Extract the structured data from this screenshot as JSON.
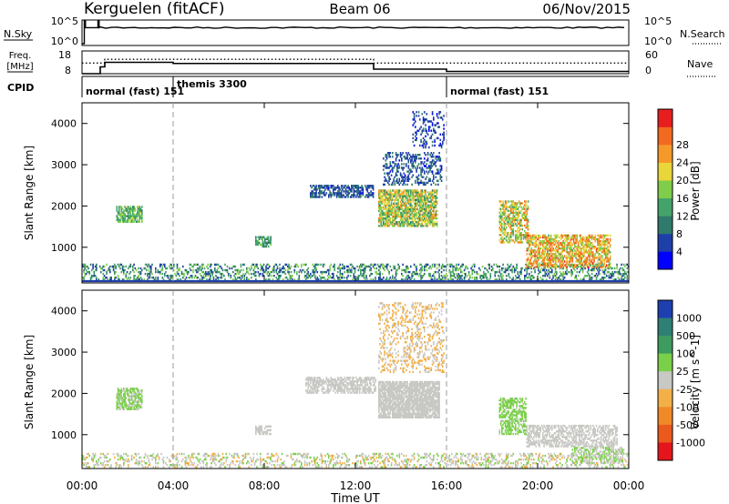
{
  "header": {
    "station": "Kerguelen (fitACF)",
    "beam": "Beam 06",
    "date": "06/Nov/2015"
  },
  "nsky_panel": {
    "left_label": "N.Sky",
    "left_ticks": [
      "10^5",
      "10^0"
    ],
    "right_ticks": [
      "10^5",
      "10^0"
    ],
    "right_label": "N.Search"
  },
  "freq_panel": {
    "left_label_line1": "Freq.",
    "left_label_line2": "[MHz]",
    "left_ticks": [
      "18",
      "8"
    ],
    "right_ticks": [
      "60",
      "0"
    ],
    "right_label": "Nave"
  },
  "cpid_panel": {
    "label": "CPID",
    "segments": [
      {
        "name": "normal (fast) 151",
        "start_hour": 0,
        "end_hour": 4
      },
      {
        "name": "themis 3300",
        "start_hour": 4,
        "end_hour": 16
      },
      {
        "name": "normal (fast) 151",
        "start_hour": 16,
        "end_hour": 24
      }
    ]
  },
  "time_axis": {
    "ticks": [
      "00:00",
      "04:00",
      "08:00",
      "12:00",
      "16:00",
      "20:00",
      "00:00"
    ],
    "label": "Time UT"
  },
  "power_panel": {
    "ylabel": "Slant Range [km]",
    "yticks": [
      "1000",
      "2000",
      "3000",
      "4000"
    ],
    "colorbar_label": "Power [dB]",
    "colorbar_ticks": [
      "4",
      "8",
      "12",
      "16",
      "20",
      "24",
      "28"
    ],
    "colors": [
      "#0000ff",
      "#1f3fa8",
      "#2f7a6a",
      "#44a36a",
      "#7fcd4a",
      "#e8d63a",
      "#f59a2a",
      "#f26a20",
      "#e81e1e"
    ]
  },
  "velocity_panel": {
    "ylabel": "Slant Range [km]",
    "yticks": [
      "1000",
      "2000",
      "3000",
      "4000"
    ],
    "colorbar_label": "Velocity [m s^-1]",
    "colorbar_ticks": [
      "1000",
      "500",
      "100",
      "25",
      "-25",
      "-100",
      "-500",
      "-1000"
    ],
    "colors": [
      "#1d3fb0",
      "#2e7f74",
      "#3e9b5f",
      "#7bd04a",
      "#c8c8c4",
      "#f3b048",
      "#f08a28",
      "#ea5a1d",
      "#e4161b"
    ]
  },
  "chart_data": {
    "type": "heatmap",
    "title": "Kerguelen (fitACF)",
    "xlabel": "Time UT",
    "ylabel": "Slant Range [km]",
    "xlim_hours": [
      0,
      24
    ],
    "ylim_km": [
      180,
      4500
    ],
    "panels": [
      {
        "name": "Power [dB]",
        "range": [
          0,
          30
        ],
        "regions": [
          {
            "t0": 0.0,
            "t1": 24.0,
            "r0": 200,
            "r1": 600,
            "density": 0.35,
            "value": 10,
            "spread": 6
          },
          {
            "t0": 1.5,
            "t1": 2.6,
            "r0": 1600,
            "r1": 2000,
            "density": 0.7,
            "value": 13,
            "spread": 4
          },
          {
            "t0": 7.6,
            "t1": 8.3,
            "r0": 1000,
            "r1": 1250,
            "density": 0.7,
            "value": 12,
            "spread": 4
          },
          {
            "t0": 10.0,
            "t1": 12.8,
            "r0": 2200,
            "r1": 2500,
            "density": 0.6,
            "value": 6,
            "spread": 3
          },
          {
            "t0": 13.0,
            "t1": 15.6,
            "r0": 1500,
            "r1": 2400,
            "density": 0.75,
            "value": 16,
            "spread": 7
          },
          {
            "t0": 13.2,
            "t1": 15.8,
            "r0": 2500,
            "r1": 3300,
            "density": 0.35,
            "value": 6,
            "spread": 3
          },
          {
            "t0": 14.5,
            "t1": 15.9,
            "r0": 3400,
            "r1": 4300,
            "density": 0.25,
            "value": 5,
            "spread": 3
          },
          {
            "t0": 18.3,
            "t1": 19.6,
            "r0": 1100,
            "r1": 2100,
            "density": 0.55,
            "value": 18,
            "spread": 7
          },
          {
            "t0": 19.5,
            "t1": 23.2,
            "r0": 500,
            "r1": 1300,
            "density": 0.6,
            "value": 20,
            "spread": 7
          }
        ]
      },
      {
        "name": "Velocity [m s^-1]",
        "range": [
          -1000,
          1000
        ],
        "regions": [
          {
            "t0": 0.0,
            "t1": 24.0,
            "r0": 200,
            "r1": 550,
            "density": 0.3,
            "value": 0,
            "spread": 200
          },
          {
            "t0": 1.5,
            "t1": 2.6,
            "r0": 1600,
            "r1": 2100,
            "density": 0.7,
            "value": 150,
            "spread": 100
          },
          {
            "t0": 7.6,
            "t1": 8.3,
            "r0": 1000,
            "r1": 1200,
            "density": 0.6,
            "value": 10,
            "spread": 20
          },
          {
            "t0": 9.8,
            "t1": 12.9,
            "r0": 2000,
            "r1": 2400,
            "density": 0.65,
            "value": 0,
            "spread": 20
          },
          {
            "t0": 13.0,
            "t1": 15.7,
            "r0": 1400,
            "r1": 2300,
            "density": 0.85,
            "value": 0,
            "spread": 15
          },
          {
            "t0": 13.0,
            "t1": 15.9,
            "r0": 2500,
            "r1": 4200,
            "density": 0.25,
            "value": -150,
            "spread": 150
          },
          {
            "t0": 18.3,
            "t1": 19.5,
            "r0": 1000,
            "r1": 1900,
            "density": 0.55,
            "value": 200,
            "spread": 120
          },
          {
            "t0": 19.5,
            "t1": 23.5,
            "r0": 700,
            "r1": 1200,
            "density": 0.55,
            "value": 0,
            "spread": 100
          },
          {
            "t0": 21.5,
            "t1": 23.8,
            "r0": 300,
            "r1": 700,
            "density": 0.45,
            "value": 100,
            "spread": 100
          }
        ]
      }
    ],
    "nsky": {
      "level": 0.7
    },
    "freq_mhz": [
      {
        "t0": 0.0,
        "t1": 0.8,
        "value": 8
      },
      {
        "t0": 0.8,
        "t1": 1.0,
        "value": 11
      },
      {
        "t0": 1.0,
        "t1": 4.0,
        "value": 13
      },
      {
        "t0": 4.0,
        "t1": 12.8,
        "value": 12.5
      },
      {
        "t0": 12.8,
        "t1": 16.0,
        "value": 10
      },
      {
        "t0": 16.0,
        "t1": 24.0,
        "value": 9
      }
    ],
    "nave": [
      {
        "t0": 0.0,
        "t1": 1.0,
        "value": 28
      },
      {
        "t0": 1.0,
        "t1": 4.0,
        "value": 38
      },
      {
        "t0": 4.0,
        "t1": 12.8,
        "value": 38
      },
      {
        "t0": 12.8,
        "t1": 24.0,
        "value": 28
      }
    ]
  }
}
